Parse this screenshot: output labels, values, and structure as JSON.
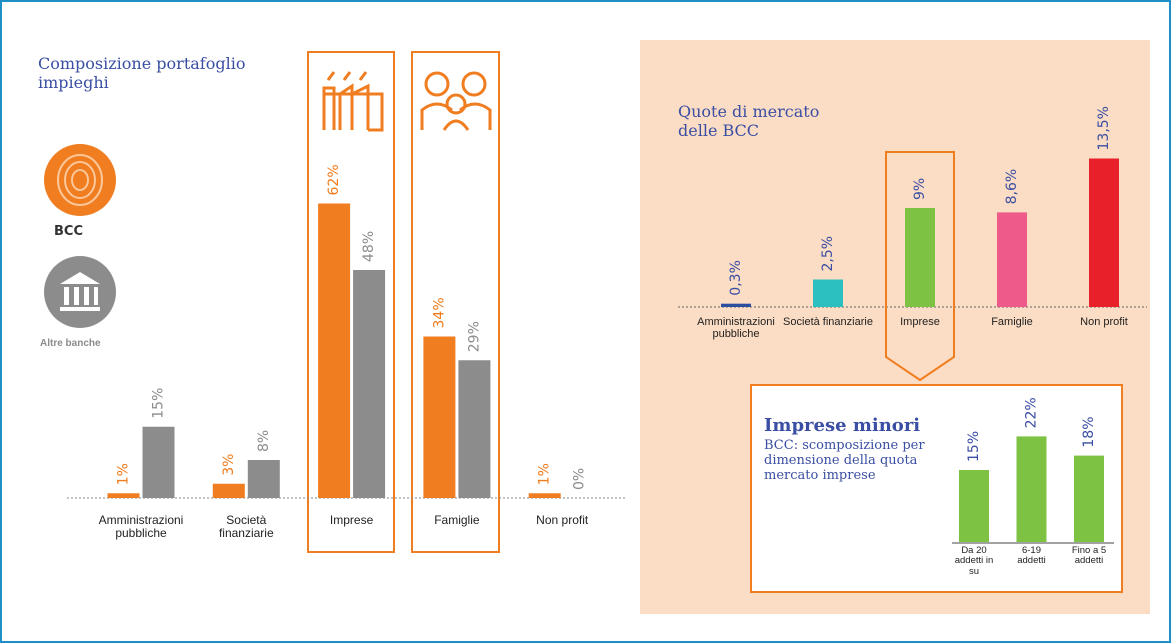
{
  "chart_data": [
    {
      "type": "bar",
      "title": "Composizione portafoglio impieghi",
      "categories": [
        "Amministrazioni pubbliche",
        "Società finanziarie",
        "Imprese",
        "Famiglie",
        "Non profit"
      ],
      "series": [
        {
          "name": "BCC",
          "color": "#f07d1f",
          "values": [
            1,
            3,
            62,
            34,
            1
          ],
          "value_labels": [
            "1%",
            "3%",
            "62%",
            "34%",
            "1%"
          ]
        },
        {
          "name": "Altre banche",
          "color": "#8c8c8c",
          "values": [
            15,
            8,
            48,
            29,
            0
          ],
          "value_labels": [
            "15%",
            "8%",
            "48%",
            "29%",
            "0%"
          ]
        }
      ]
    },
    {
      "type": "bar",
      "title": "Quote di mercato delle BCC",
      "categories": [
        "Amministrazioni pubbliche",
        "Società finanziarie",
        "Imprese",
        "Famiglie",
        "Non profit"
      ],
      "values": [
        0.3,
        2.5,
        9,
        8.6,
        13.5
      ],
      "value_labels": [
        "0,3%",
        "2,5%",
        "9%",
        "8,6%",
        "13,5%"
      ],
      "colors": [
        "#2b4f9e",
        "#2cc0c0",
        "#7dc242",
        "#ee5a8a",
        "#e8202a"
      ]
    },
    {
      "type": "bar",
      "title": "Imprese minori",
      "subtitle": "BCC: scomposizione per dimensione della quota mercato imprese",
      "categories": [
        "Da 20 addetti in su",
        "6-19 addetti",
        "Fino a 5 addetti"
      ],
      "values": [
        15,
        22,
        18
      ],
      "value_labels": [
        "15%",
        "22%",
        "18%"
      ],
      "color": "#7dc242"
    }
  ]
}
